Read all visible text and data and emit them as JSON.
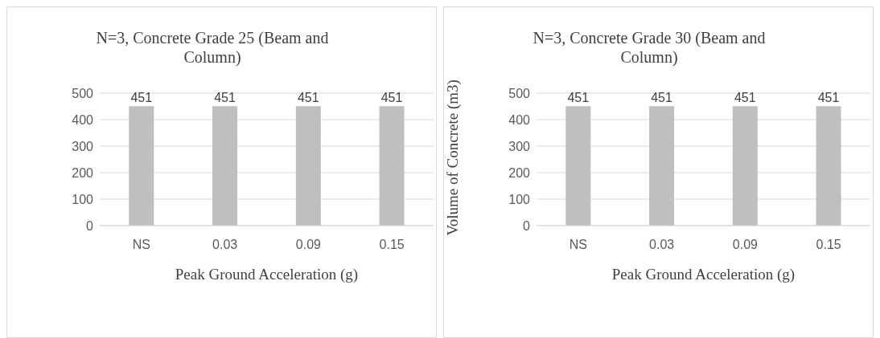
{
  "chart_data": [
    {
      "type": "bar",
      "title": "N=3, Concrete Grade 25 (Beam and Column)",
      "xlabel": "Peak Ground Acceleration (g)",
      "categories": [
        "NS",
        "0.03",
        "0.09",
        "0.15"
      ],
      "values": [
        451,
        451,
        451,
        451
      ],
      "color": "#bfbfbf",
      "ylim": [
        0,
        500
      ],
      "yticks": [
        0,
        100,
        200,
        300,
        400,
        500
      ],
      "grid": "y",
      "data_labels": true
    },
    {
      "type": "bar",
      "title": "N=3, Concrete Grade 30 (Beam and Column)",
      "xlabel": "Peak Ground Acceleration (g)",
      "ylabel": "Volume of Concrete (m3)",
      "categories": [
        "NS",
        "0.03",
        "0.09",
        "0.15"
      ],
      "values": [
        451,
        451,
        451,
        451
      ],
      "color": "#bfbfbf",
      "ylim": [
        0,
        500
      ],
      "yticks": [
        0,
        100,
        200,
        300,
        400,
        500
      ],
      "grid": "y",
      "data_labels": true
    }
  ]
}
